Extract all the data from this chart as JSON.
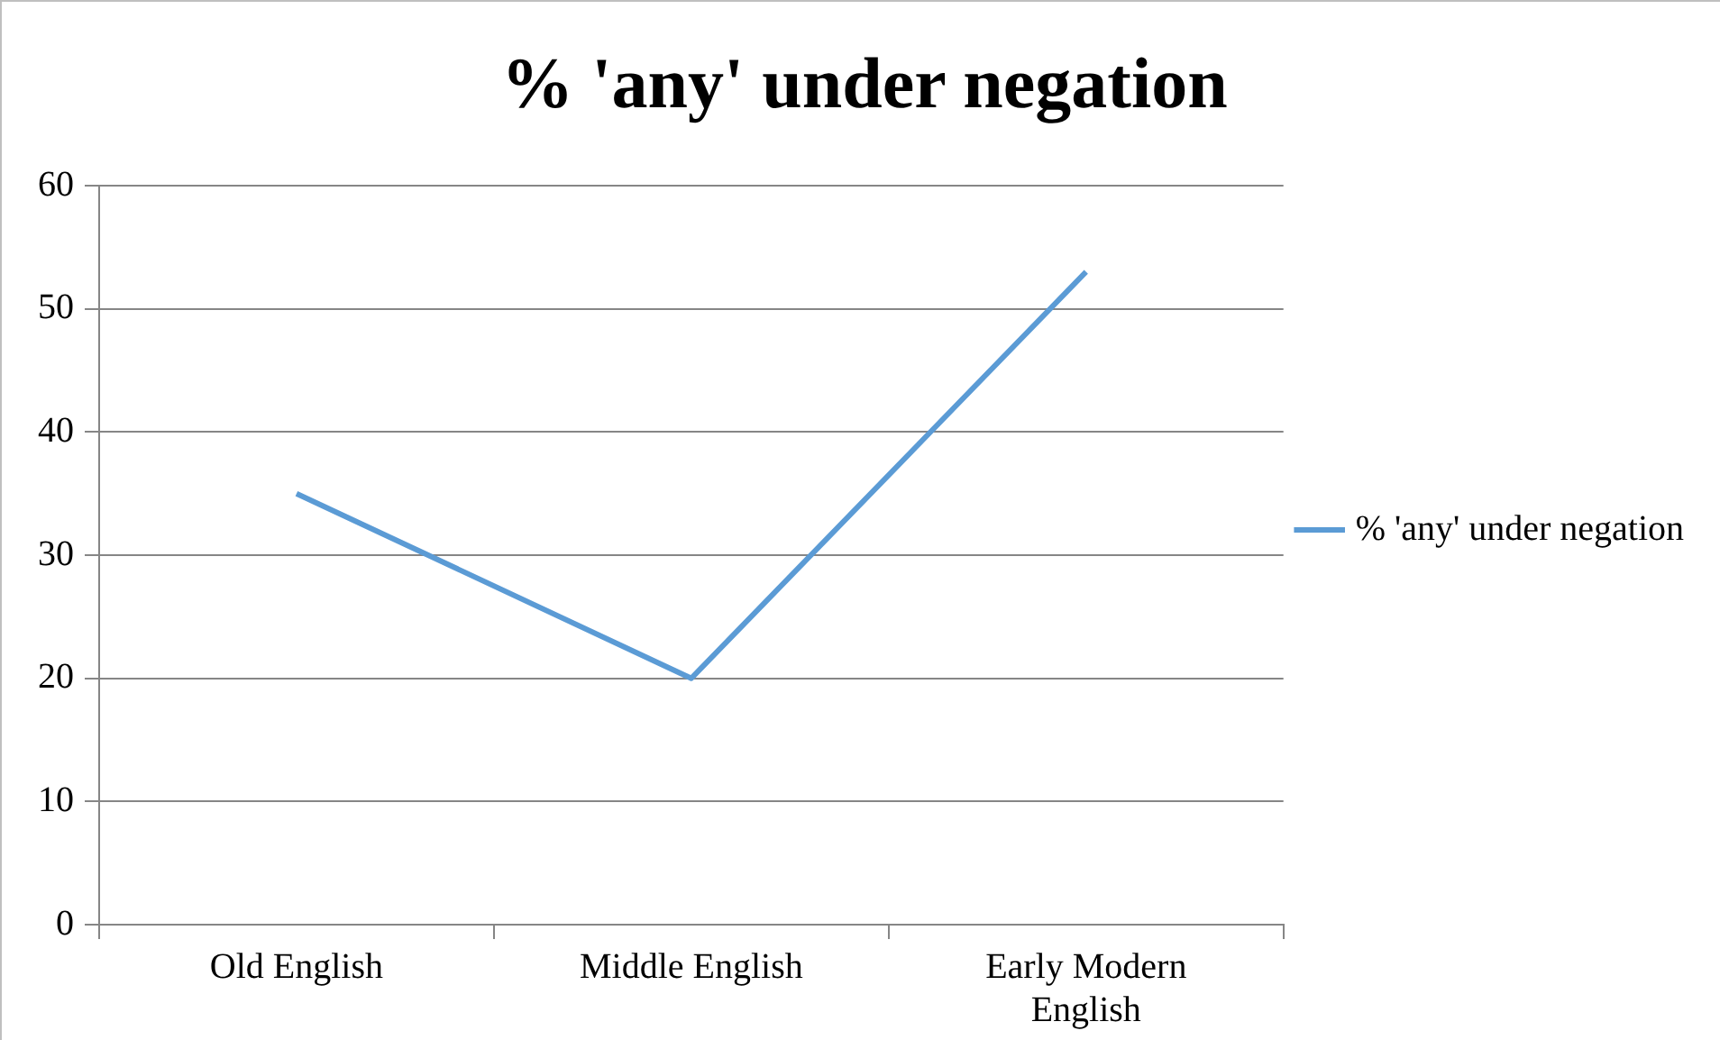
{
  "chart_data": {
    "type": "line",
    "title": "% 'any' under negation",
    "categories": [
      "Old English",
      "Middle English",
      "Early Modern English"
    ],
    "series": [
      {
        "name": "% 'any' under negation",
        "color": "#5b9bd5",
        "values": [
          35,
          20,
          53
        ]
      }
    ],
    "ylim": [
      0,
      60
    ],
    "yticks": [
      0,
      10,
      20,
      30,
      40,
      50,
      60
    ],
    "grid": "y",
    "legend": "right",
    "marker": "none",
    "line_style": "solid"
  }
}
